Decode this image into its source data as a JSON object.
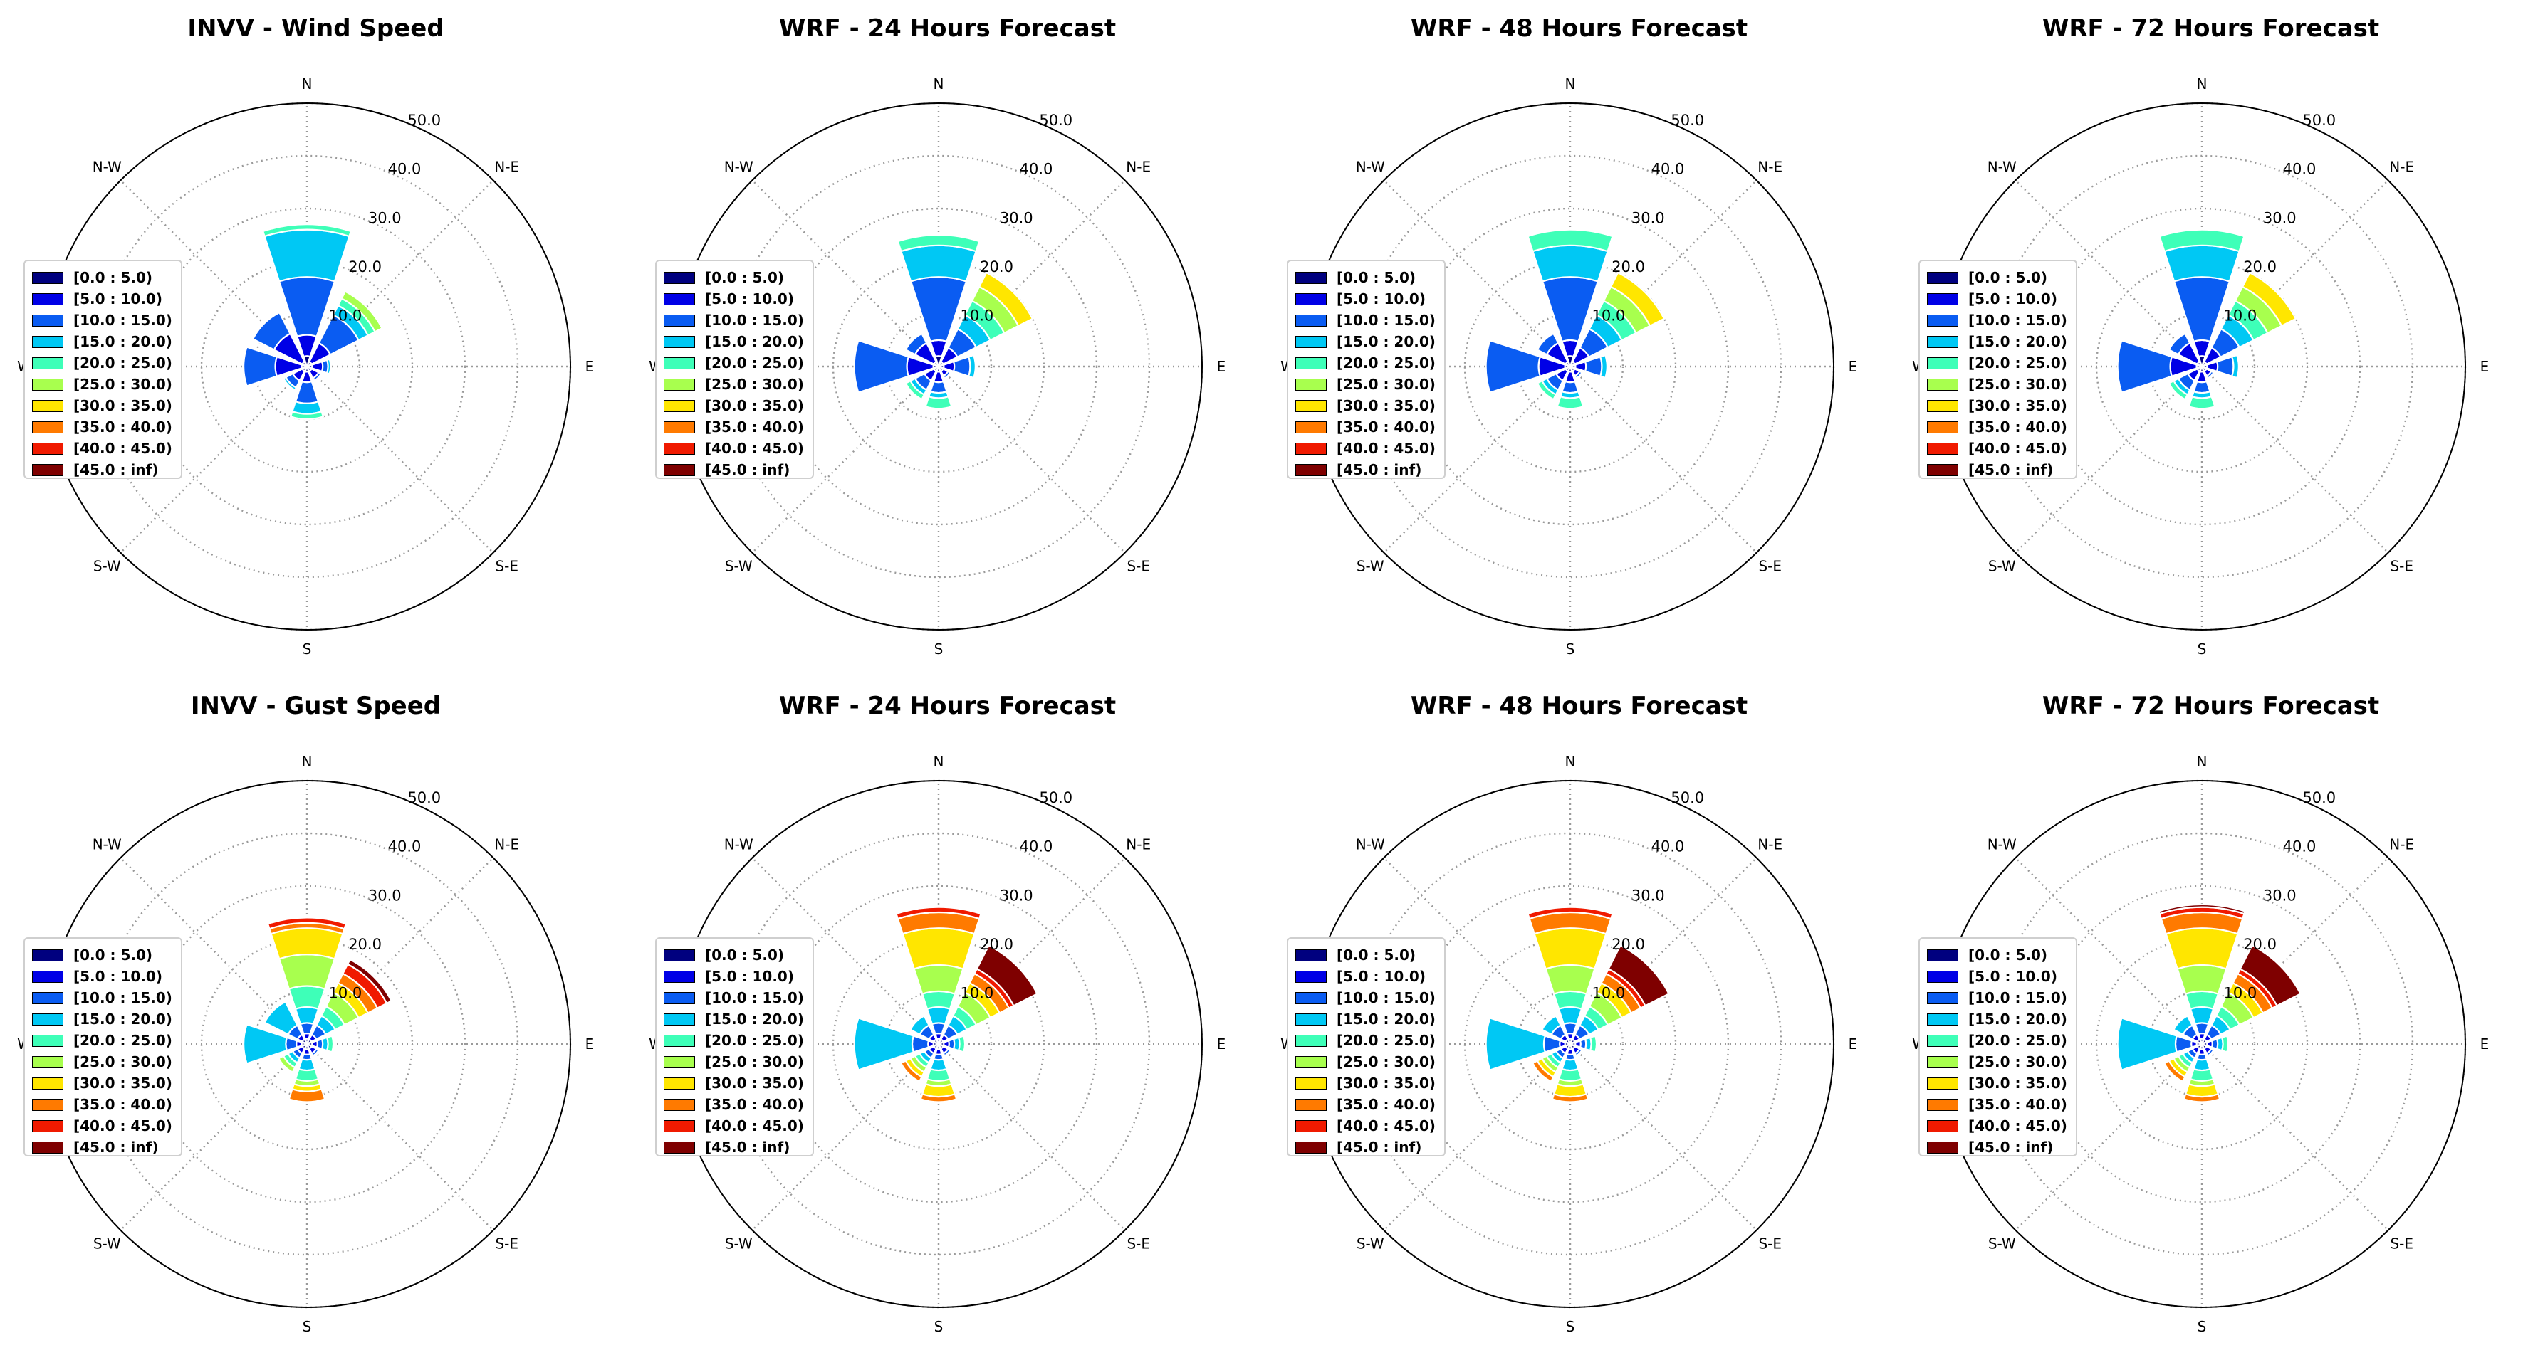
{
  "figure": {
    "directions": [
      "N",
      "N-E",
      "E",
      "S-E",
      "S",
      "S-W",
      "W",
      "N-W"
    ],
    "radial_ticks": [
      "10.0",
      "20.0",
      "30.0",
      "40.0",
      "50.0"
    ],
    "rmax": 50,
    "bins": [
      {
        "label": "[0.0 : 5.0)",
        "color": "#00007f"
      },
      {
        "label": "[5.0 : 10.0)",
        "color": "#0000e6"
      },
      {
        "label": "[10.0 : 15.0)",
        "color": "#0a5cf2"
      },
      {
        "label": "[15.0 : 20.0)",
        "color": "#00c8f4"
      },
      {
        "label": "[20.0 : 25.0)",
        "color": "#3effb8"
      },
      {
        "label": "[25.0 : 30.0)",
        "color": "#a8ff4e"
      },
      {
        "label": "[30.0 : 35.0)",
        "color": "#ffe600"
      },
      {
        "label": "[35.0 : 40.0)",
        "color": "#ff7a00"
      },
      {
        "label": "[40.0 : 45.0)",
        "color": "#f01a00"
      },
      {
        "label": "[45.0 : inf)",
        "color": "#7f0000"
      }
    ]
  },
  "chart_data": [
    {
      "type": "windrose",
      "title": "INVV - Wind Speed",
      "rlim": [
        0,
        50
      ],
      "series": [
        {
          "direction": "N",
          "values": [
            2,
            4,
            11,
            9,
            1,
            0,
            0,
            0,
            0,
            0
          ]
        },
        {
          "direction": "N-E",
          "values": [
            1,
            4,
            6,
            2,
            1.5,
            1.5,
            0,
            0,
            0,
            0
          ]
        },
        {
          "direction": "E",
          "values": [
            1,
            2,
            1,
            0.5,
            0,
            0,
            0,
            0,
            0,
            0
          ]
        },
        {
          "direction": "S-E",
          "values": [
            1,
            1.5,
            0.5,
            0,
            0,
            0,
            0,
            0,
            0,
            0
          ]
        },
        {
          "direction": "S",
          "values": [
            1,
            2,
            4,
            2,
            1,
            0,
            0,
            0,
            0,
            0
          ]
        },
        {
          "direction": "S-W",
          "values": [
            1,
            2,
            1.5,
            0.5,
            0,
            0,
            0,
            0,
            0,
            0
          ]
        },
        {
          "direction": "W",
          "values": [
            1,
            5,
            6,
            0,
            0,
            0,
            0,
            0,
            0,
            0
          ]
        },
        {
          "direction": "N-W",
          "values": [
            1,
            6,
            4.5,
            0,
            0,
            0,
            0,
            0,
            0,
            0
          ]
        }
      ]
    },
    {
      "type": "windrose",
      "title": "WRF - 24 Hours Forecast",
      "rlim": [
        0,
        50
      ],
      "series": [
        {
          "direction": "N",
          "values": [
            2,
            3,
            12,
            6,
            2,
            0,
            0,
            0,
            0,
            0
          ]
        },
        {
          "direction": "N-E",
          "values": [
            1,
            3,
            4,
            3,
            3,
            3,
            3,
            0,
            0,
            0
          ]
        },
        {
          "direction": "E",
          "values": [
            1,
            2,
            3,
            1,
            0,
            0,
            0,
            0,
            0,
            0
          ]
        },
        {
          "direction": "S-E",
          "values": [
            1,
            1,
            0.5,
            0,
            0,
            0,
            0,
            0,
            0,
            0
          ]
        },
        {
          "direction": "S",
          "values": [
            1,
            2,
            2,
            1,
            2,
            0,
            0,
            0,
            0,
            0
          ]
        },
        {
          "direction": "S-W",
          "values": [
            1,
            2,
            2,
            1,
            1,
            0,
            0,
            0,
            0,
            0
          ]
        },
        {
          "direction": "W",
          "values": [
            1,
            5,
            10,
            0,
            0,
            0,
            0,
            0,
            0,
            0
          ]
        },
        {
          "direction": "N-W",
          "values": [
            1,
            4,
            2,
            0,
            0,
            0,
            0,
            0,
            0,
            0
          ]
        }
      ]
    },
    {
      "type": "windrose",
      "title": "WRF - 48 Hours Forecast",
      "rlim": [
        0,
        50
      ],
      "series": [
        {
          "direction": "N",
          "values": [
            2,
            3,
            12,
            6,
            3,
            0,
            0,
            0,
            0,
            0
          ]
        },
        {
          "direction": "N-E",
          "values": [
            1,
            3,
            4,
            3,
            3,
            3,
            3,
            0,
            0,
            0
          ]
        },
        {
          "direction": "E",
          "values": [
            1,
            2,
            3,
            1,
            0,
            0,
            0,
            0,
            0,
            0
          ]
        },
        {
          "direction": "S-E",
          "values": [
            1,
            1,
            0.5,
            0,
            0,
            0,
            0,
            0,
            0,
            0
          ]
        },
        {
          "direction": "S",
          "values": [
            1,
            2,
            2,
            1,
            2,
            0,
            0,
            0,
            0,
            0
          ]
        },
        {
          "direction": "S-W",
          "values": [
            1,
            2,
            2,
            1,
            1,
            0,
            0,
            0,
            0,
            0
          ]
        },
        {
          "direction": "W",
          "values": [
            1,
            5,
            10,
            0,
            0,
            0,
            0,
            0,
            0,
            0
          ]
        },
        {
          "direction": "N-W",
          "values": [
            1,
            4,
            2,
            0,
            0,
            0,
            0,
            0,
            0,
            0
          ]
        }
      ]
    },
    {
      "type": "windrose",
      "title": "WRF - 72 Hours Forecast",
      "rlim": [
        0,
        50
      ],
      "series": [
        {
          "direction": "N",
          "values": [
            2,
            3,
            12,
            6,
            3,
            0,
            0,
            0,
            0,
            0
          ]
        },
        {
          "direction": "N-E",
          "values": [
            1,
            3,
            4,
            3,
            3,
            3,
            3,
            0,
            0,
            0
          ]
        },
        {
          "direction": "E",
          "values": [
            1,
            2,
            3,
            1,
            0,
            0,
            0,
            0,
            0,
            0
          ]
        },
        {
          "direction": "S-E",
          "values": [
            1,
            1,
            0.5,
            0,
            0,
            0,
            0,
            0,
            0,
            0
          ]
        },
        {
          "direction": "S",
          "values": [
            1,
            2,
            2,
            1,
            2,
            0,
            0,
            0,
            0,
            0
          ]
        },
        {
          "direction": "S-W",
          "values": [
            1,
            2,
            2,
            1,
            1,
            0,
            0,
            0,
            0,
            0
          ]
        },
        {
          "direction": "W",
          "values": [
            1,
            5,
            10,
            0,
            0,
            0,
            0,
            0,
            0,
            0
          ]
        },
        {
          "direction": "N-W",
          "values": [
            1,
            4,
            2,
            0,
            0,
            0,
            0,
            0,
            0,
            0
          ]
        }
      ]
    },
    {
      "type": "windrose",
      "title": "INVV - Gust Speed",
      "rlim": [
        0,
        50
      ],
      "series": [
        {
          "direction": "N",
          "values": [
            1,
            1,
            2,
            3,
            4,
            6,
            5,
            1,
            1,
            0
          ]
        },
        {
          "direction": "N-E",
          "values": [
            1,
            1,
            2,
            2,
            2,
            3,
            2,
            2,
            2,
            1
          ]
        },
        {
          "direction": "E",
          "values": [
            1,
            1,
            1,
            1,
            1,
            0,
            0,
            0,
            0,
            0
          ]
        },
        {
          "direction": "S-E",
          "values": [
            1,
            1,
            0.5,
            0,
            0,
            0,
            0,
            0,
            0,
            0
          ]
        },
        {
          "direction": "S",
          "values": [
            1,
            1,
            1,
            2,
            2,
            1,
            1,
            2,
            0,
            0
          ]
        },
        {
          "direction": "S-W",
          "values": [
            1,
            1,
            1,
            1,
            1,
            1,
            0,
            0,
            0,
            0
          ]
        },
        {
          "direction": "W",
          "values": [
            1,
            1,
            2,
            8,
            0,
            0,
            0,
            0,
            0,
            0
          ]
        },
        {
          "direction": "N-W",
          "values": [
            1,
            1,
            2,
            5,
            0,
            0,
            0,
            0,
            0,
            0
          ]
        }
      ]
    },
    {
      "type": "windrose",
      "title": "WRF - 24 Hours Forecast",
      "rlim": [
        0,
        50
      ],
      "series": [
        {
          "direction": "N",
          "values": [
            1,
            1,
            2,
            3,
            3,
            5,
            7,
            3,
            1,
            0
          ]
        },
        {
          "direction": "N-E",
          "values": [
            1,
            1,
            2,
            2,
            2,
            3,
            2,
            2,
            1,
            5
          ]
        },
        {
          "direction": "E",
          "values": [
            1,
            1,
            1,
            1,
            1,
            0,
            0,
            0,
            0,
            0
          ]
        },
        {
          "direction": "S-E",
          "values": [
            1,
            1,
            0.5,
            0,
            0,
            0,
            0,
            0,
            0,
            0
          ]
        },
        {
          "direction": "S",
          "values": [
            1,
            1,
            1,
            2,
            2,
            1,
            2,
            1,
            0,
            0
          ]
        },
        {
          "direction": "S-W",
          "values": [
            1,
            1,
            1,
            1,
            1,
            1,
            1,
            1,
            0,
            0
          ]
        },
        {
          "direction": "W",
          "values": [
            1,
            1,
            3,
            11,
            0,
            0,
            0,
            0,
            0,
            0
          ]
        },
        {
          "direction": "N-W",
          "values": [
            1,
            1,
            2,
            2,
            0,
            0,
            0,
            0,
            0,
            0
          ]
        }
      ]
    },
    {
      "type": "windrose",
      "title": "WRF - 48 Hours Forecast",
      "rlim": [
        0,
        50
      ],
      "series": [
        {
          "direction": "N",
          "values": [
            1,
            1,
            2,
            3,
            3,
            5,
            7,
            3,
            1,
            0
          ]
        },
        {
          "direction": "N-E",
          "values": [
            1,
            1,
            2,
            2,
            2,
            3,
            2,
            2,
            1,
            5
          ]
        },
        {
          "direction": "E",
          "values": [
            1,
            1,
            1,
            1,
            1,
            0,
            0,
            0,
            0,
            0
          ]
        },
        {
          "direction": "S-E",
          "values": [
            1,
            1,
            0.5,
            0,
            0,
            0,
            0,
            0,
            0,
            0
          ]
        },
        {
          "direction": "S",
          "values": [
            1,
            1,
            1,
            2,
            2,
            1,
            2,
            1,
            0,
            0
          ]
        },
        {
          "direction": "S-W",
          "values": [
            1,
            1,
            1,
            1,
            1,
            1,
            1,
            1,
            0,
            0
          ]
        },
        {
          "direction": "W",
          "values": [
            1,
            1,
            3,
            11,
            0,
            0,
            0,
            0,
            0,
            0
          ]
        },
        {
          "direction": "N-W",
          "values": [
            1,
            1,
            2,
            2,
            0,
            0,
            0,
            0,
            0,
            0
          ]
        }
      ]
    },
    {
      "type": "windrose",
      "title": "WRF - 72 Hours Forecast",
      "rlim": [
        0,
        50
      ],
      "series": [
        {
          "direction": "N",
          "values": [
            1,
            1,
            2,
            3,
            3,
            5,
            7,
            3,
            1,
            0.5
          ]
        },
        {
          "direction": "N-E",
          "values": [
            1,
            1,
            2,
            2,
            2,
            3,
            2,
            2,
            1,
            5
          ]
        },
        {
          "direction": "E",
          "values": [
            1,
            1,
            1,
            1,
            1,
            0,
            0,
            0,
            0,
            0
          ]
        },
        {
          "direction": "S-E",
          "values": [
            1,
            1,
            0.5,
            0,
            0,
            0,
            0,
            0,
            0,
            0
          ]
        },
        {
          "direction": "S",
          "values": [
            1,
            1,
            1,
            2,
            2,
            1,
            2,
            1,
            0,
            0
          ]
        },
        {
          "direction": "S-W",
          "values": [
            1,
            1,
            1,
            1,
            1,
            1,
            1,
            1,
            0,
            0
          ]
        },
        {
          "direction": "W",
          "values": [
            1,
            1,
            3,
            11,
            0,
            0,
            0,
            0,
            0,
            0
          ]
        },
        {
          "direction": "N-W",
          "values": [
            1,
            1,
            2,
            2,
            0,
            0,
            0,
            0,
            0,
            0
          ]
        }
      ]
    }
  ]
}
